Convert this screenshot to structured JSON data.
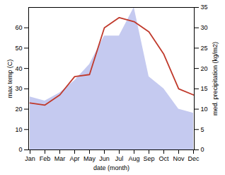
{
  "chart_data": {
    "type": "line",
    "categories": [
      "Jan",
      "Feb",
      "Mar",
      "Apr",
      "May",
      "Jun",
      "Jul",
      "Aug",
      "Sep",
      "Oct",
      "Nov",
      "Dec"
    ],
    "series": [
      {
        "type": "area",
        "axis": "y2",
        "color": "#c5caf0",
        "values": [
          13,
          12,
          14,
          17,
          21,
          28,
          28,
          35,
          18,
          15,
          10,
          9
        ]
      },
      {
        "type": "line",
        "color": "#c0392b",
        "values": [
          23,
          22,
          27,
          36,
          37,
          60,
          65,
          63,
          58,
          47,
          30,
          27
        ]
      }
    ],
    "xlabel": "date (month)",
    "ylabel": "max temp (C)",
    "y2label": "med. precipitation (kg/m2)",
    "ylim": [
      0,
      70
    ],
    "yticks": [
      0,
      10,
      20,
      30,
      40,
      50,
      60
    ],
    "y2lim": [
      0,
      35
    ],
    "y2ticks": [
      0,
      5,
      10,
      15,
      20,
      25,
      30,
      35
    ],
    "grid": false
  }
}
